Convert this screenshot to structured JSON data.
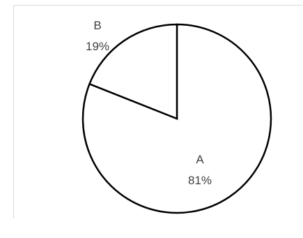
{
  "chart_data": {
    "type": "pie",
    "title": "",
    "start_angle_deg": 0,
    "direction": "clockwise",
    "slices": [
      {
        "label": "A",
        "value": 81,
        "value_label": "81%"
      },
      {
        "label": "B",
        "value": 19,
        "value_label": "19%"
      }
    ],
    "colors": {
      "fill": "#ffffff",
      "stroke": "#000000",
      "label": "#404040",
      "frame": "#d9d9d9"
    },
    "legend": "none"
  }
}
